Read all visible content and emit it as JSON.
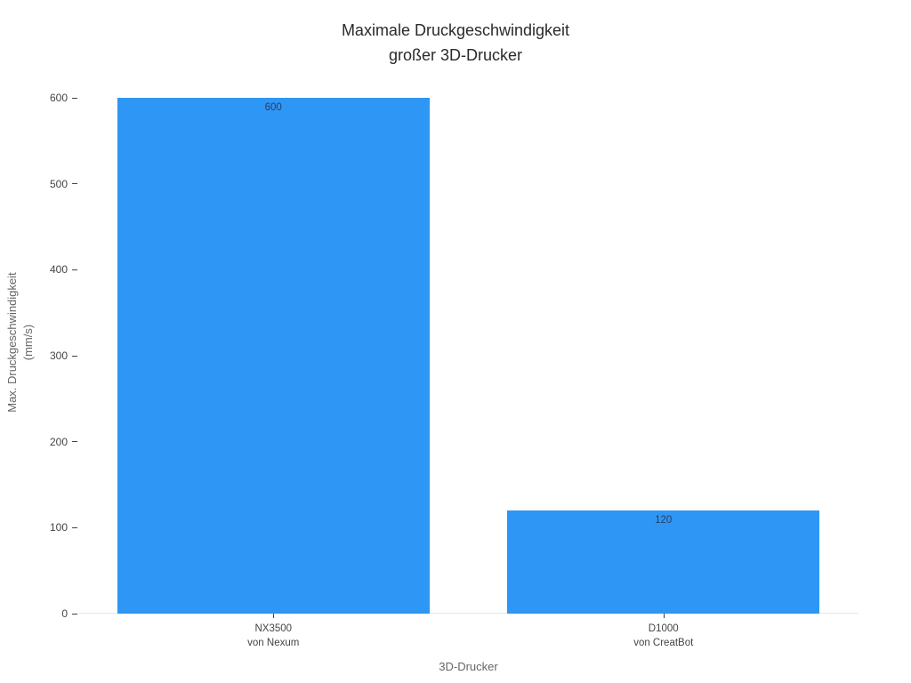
{
  "chart_data": {
    "type": "bar",
    "title": "Maximale Druckgeschwindigkeit\ngroßer 3D-Drucker",
    "categories": [
      "NX3500\nvon Nexum",
      "D1000\nvon CreatBot"
    ],
    "values": [
      600,
      120
    ],
    "value_labels": [
      "600",
      "120"
    ],
    "xlabel": "3D-Drucker",
    "ylabel": "Max. Druckgeschwindigkeit\n(mm/s)",
    "ylim": [
      0,
      600
    ],
    "yticks": [
      0,
      100,
      200,
      300,
      400,
      500,
      600
    ],
    "bar_color": "#2e96f5",
    "grid": false,
    "legend": false,
    "value_label_position": "inside-top"
  }
}
